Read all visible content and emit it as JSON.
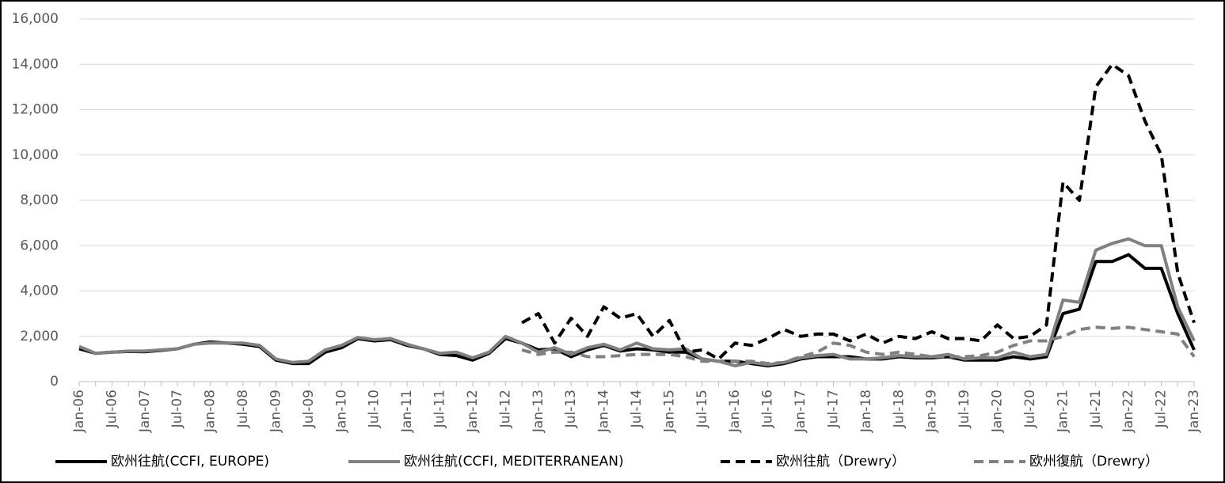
{
  "chart_data": {
    "type": "line",
    "categories": [
      "Jan-06",
      null,
      "Jul-06",
      null,
      "Jan-07",
      null,
      "Jul-07",
      null,
      "Jan-08",
      null,
      "Jul-08",
      null,
      "Jan-09",
      null,
      "Jul-09",
      null,
      "Jan-10",
      null,
      "Jul-10",
      null,
      "Jan-11",
      null,
      "Jul-11",
      null,
      "Jan-12",
      null,
      "Jul-12",
      null,
      "Jan-13",
      null,
      "Jul-13",
      null,
      "Jan-14",
      null,
      "Jul-14",
      null,
      "Jan-15",
      null,
      "Jul-15",
      null,
      "Jan-16",
      null,
      "Jul-16",
      null,
      "Jan-17",
      null,
      "Jul-17",
      null,
      "Jan-18",
      null,
      "Jul-18",
      null,
      "Jan-19",
      null,
      "Jul-19",
      null,
      "Jan-20",
      null,
      "Jul-20",
      null,
      "Jan-21",
      null,
      "Jul-21",
      null,
      "Jan-22",
      null,
      "Jul-22",
      null,
      "Jan-23"
    ],
    "series": [
      {
        "name": "欧州往航(CCFI, EUROPE)",
        "color": "#000000",
        "dashed": false,
        "values": [
          1450,
          1250,
          1300,
          1330,
          1320,
          1380,
          1450,
          1650,
          1750,
          1700,
          1650,
          1550,
          950,
          800,
          800,
          1300,
          1500,
          1900,
          1800,
          1850,
          1600,
          1450,
          1200,
          1150,
          950,
          1250,
          1900,
          1700,
          1400,
          1450,
          1100,
          1400,
          1600,
          1350,
          1450,
          1400,
          1300,
          1300,
          1000,
          900,
          900,
          800,
          700,
          800,
          1000,
          1100,
          1100,
          1100,
          1000,
          1000,
          1100,
          1050,
          1050,
          1100,
          950,
          950,
          950,
          1100,
          1000,
          1100,
          3000,
          3200,
          5300,
          5300,
          5600,
          5000,
          5000,
          3000,
          1400
        ]
      },
      {
        "name": "欧州往航(CCFI, MEDITERRANEAN)",
        "color": "#808080",
        "dashed": false,
        "values": [
          1550,
          1250,
          1300,
          1350,
          1350,
          1400,
          1450,
          1650,
          1700,
          1700,
          1700,
          1600,
          1000,
          850,
          900,
          1400,
          1600,
          1950,
          1850,
          1900,
          1650,
          1450,
          1250,
          1300,
          1050,
          1300,
          2000,
          1700,
          1300,
          1500,
          1200,
          1500,
          1650,
          1400,
          1700,
          1450,
          1400,
          1450,
          1000,
          900,
          700,
          850,
          750,
          850,
          1050,
          1150,
          1200,
          1000,
          1000,
          1050,
          1150,
          1100,
          1100,
          1200,
          1000,
          1050,
          1050,
          1300,
          1100,
          1200,
          3600,
          3500,
          5800,
          6100,
          6300,
          6000,
          6000,
          3300,
          1800
        ]
      },
      {
        "name": "欧州往航（Drewry）",
        "color": "#000000",
        "dashed": true,
        "values": [
          null,
          null,
          null,
          null,
          null,
          null,
          null,
          null,
          null,
          null,
          null,
          null,
          null,
          null,
          null,
          null,
          null,
          null,
          null,
          null,
          null,
          null,
          null,
          null,
          null,
          null,
          null,
          2600,
          3000,
          1700,
          2800,
          2000,
          3300,
          2800,
          3000,
          2000,
          2700,
          1300,
          1400,
          1000,
          1700,
          1600,
          1900,
          2300,
          2000,
          2100,
          2100,
          1800,
          2100,
          1700,
          2000,
          1900,
          2200,
          1900,
          1900,
          1800,
          2500,
          1900,
          2000,
          2500,
          8800,
          8000,
          13000,
          14000,
          13500,
          11500,
          10000,
          4800,
          2600
        ]
      },
      {
        "name": "欧州復航（Drewry）",
        "color": "#808080",
        "dashed": true,
        "values": [
          null,
          null,
          null,
          null,
          null,
          null,
          null,
          null,
          null,
          null,
          null,
          null,
          null,
          null,
          null,
          null,
          null,
          null,
          null,
          null,
          null,
          null,
          null,
          null,
          null,
          null,
          null,
          1400,
          1200,
          1300,
          1300,
          1100,
          1100,
          1150,
          1200,
          1200,
          1200,
          1100,
          900,
          900,
          900,
          900,
          800,
          850,
          1100,
          1300,
          1700,
          1600,
          1300,
          1200,
          1300,
          1200,
          1100,
          1100,
          1100,
          1150,
          1300,
          1600,
          1800,
          1800,
          2000,
          2300,
          2400,
          2350,
          2400,
          2300,
          2200,
          2100,
          1100
        ]
      }
    ],
    "ylim": [
      0,
      16000
    ],
    "yticks": [
      0,
      {
        "value": 2000,
        "label": "2,000"
      },
      {
        "value": 4000,
        "label": "4,000"
      },
      {
        "value": 6000,
        "label": "6,000"
      },
      {
        "value": 8000,
        "label": "8,000"
      },
      {
        "value": 10000,
        "label": "10,000"
      },
      {
        "value": 12000,
        "label": "12,000"
      },
      {
        "value": 14000,
        "label": "14,000"
      },
      {
        "value": 16000,
        "label": "16,000"
      }
    ],
    "grid": true,
    "legend": "bottom"
  }
}
